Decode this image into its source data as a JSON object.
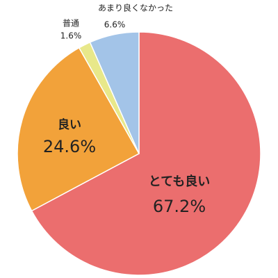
{
  "chart_data": {
    "type": "pie",
    "categories": [
      "とても良い",
      "良い",
      "普通",
      "あまり良くなかった"
    ],
    "values": [
      67.2,
      24.6,
      1.6,
      6.6
    ],
    "value_labels": [
      "67.2%",
      "24.6%",
      "1.6%",
      "6.6%"
    ],
    "colors": [
      "#eb6e6e",
      "#f2a23a",
      "#e8e88a",
      "#a3c4e8"
    ]
  }
}
